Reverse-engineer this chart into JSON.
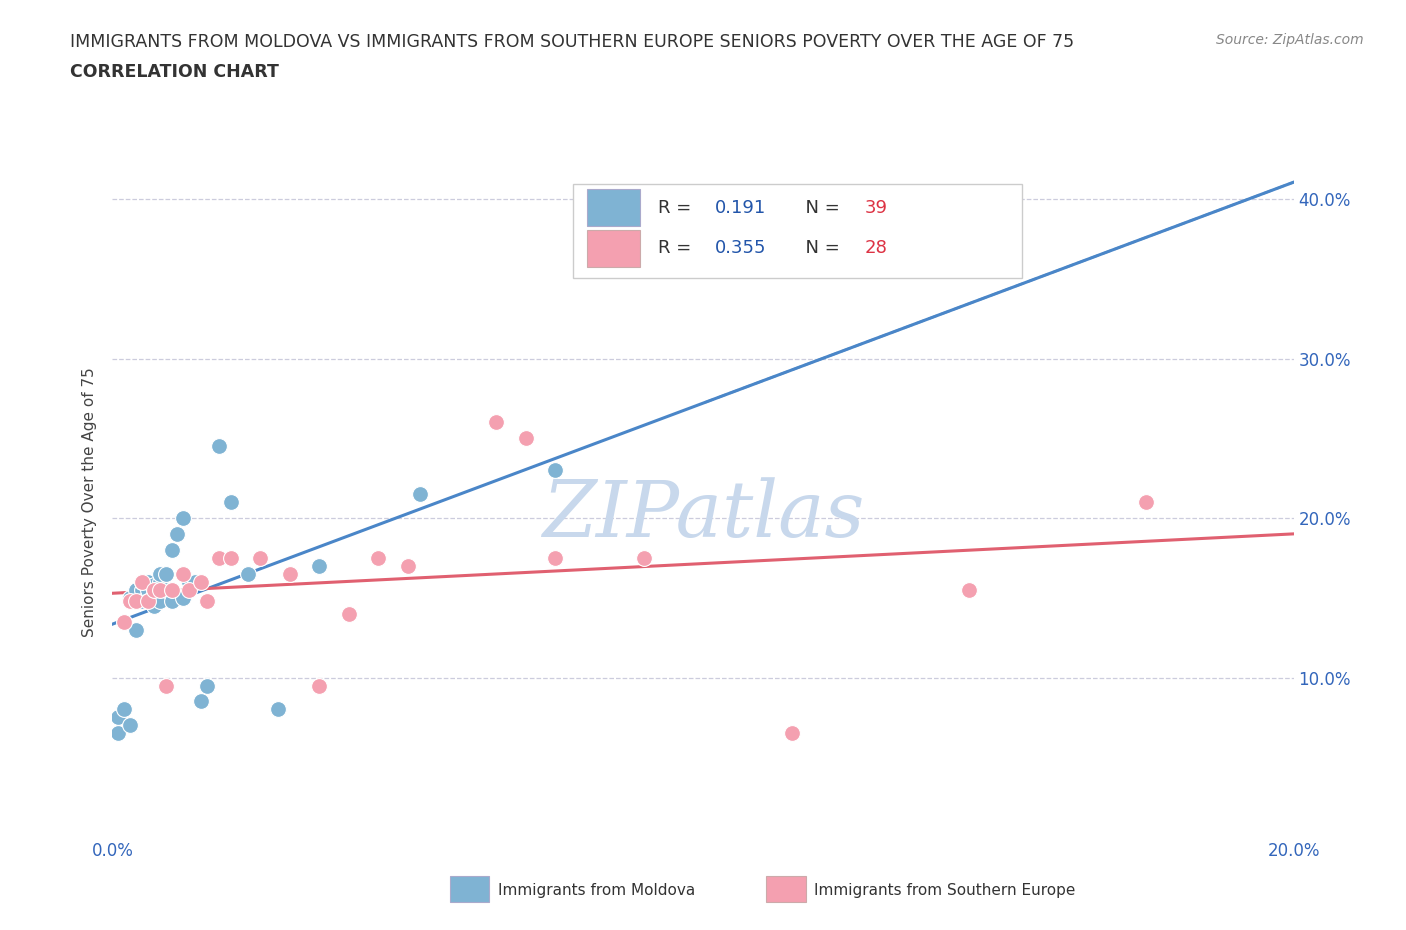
{
  "title_line1": "IMMIGRANTS FROM MOLDOVA VS IMMIGRANTS FROM SOUTHERN EUROPE SENIORS POVERTY OVER THE AGE OF 75",
  "title_line2": "CORRELATION CHART",
  "source_text": "Source: ZipAtlas.com",
  "ylabel": "Seniors Poverty Over the Age of 75",
  "xlim": [
    0.0,
    0.2
  ],
  "ylim": [
    0.0,
    0.42
  ],
  "moldova_color": "#7fb3d3",
  "moldova_color_dark": "#4a86c8",
  "southern_europe_color": "#f4a0b0",
  "southern_europe_color_dark": "#e06070",
  "moldova_R": 0.191,
  "moldova_N": 39,
  "southern_europe_R": 0.355,
  "southern_europe_N": 28,
  "legend_text_color": "#2255aa",
  "legend_N_color": "#dd3344",
  "watermark": "ZIPatlas",
  "watermark_color": "#c8d8ec",
  "moldova_x": [
    0.001,
    0.001,
    0.002,
    0.003,
    0.003,
    0.004,
    0.004,
    0.005,
    0.005,
    0.005,
    0.006,
    0.006,
    0.006,
    0.007,
    0.007,
    0.007,
    0.008,
    0.008,
    0.008,
    0.008,
    0.009,
    0.009,
    0.01,
    0.01,
    0.01,
    0.011,
    0.012,
    0.012,
    0.013,
    0.014,
    0.015,
    0.016,
    0.018,
    0.02,
    0.023,
    0.028,
    0.035,
    0.052,
    0.075
  ],
  "moldova_y": [
    0.065,
    0.075,
    0.08,
    0.07,
    0.15,
    0.13,
    0.155,
    0.155,
    0.148,
    0.16,
    0.155,
    0.16,
    0.148,
    0.155,
    0.158,
    0.145,
    0.155,
    0.16,
    0.148,
    0.165,
    0.155,
    0.165,
    0.155,
    0.18,
    0.148,
    0.19,
    0.2,
    0.15,
    0.16,
    0.16,
    0.085,
    0.095,
    0.245,
    0.21,
    0.165,
    0.08,
    0.17,
    0.215,
    0.23
  ],
  "southern_europe_x": [
    0.002,
    0.003,
    0.004,
    0.005,
    0.006,
    0.007,
    0.008,
    0.009,
    0.01,
    0.012,
    0.013,
    0.015,
    0.016,
    0.018,
    0.02,
    0.025,
    0.03,
    0.035,
    0.04,
    0.045,
    0.05,
    0.065,
    0.07,
    0.075,
    0.09,
    0.115,
    0.145,
    0.175
  ],
  "southern_europe_y": [
    0.135,
    0.148,
    0.148,
    0.16,
    0.148,
    0.155,
    0.155,
    0.095,
    0.155,
    0.165,
    0.155,
    0.16,
    0.148,
    0.175,
    0.175,
    0.175,
    0.165,
    0.095,
    0.14,
    0.175,
    0.17,
    0.26,
    0.25,
    0.175,
    0.175,
    0.065,
    0.155,
    0.21
  ]
}
